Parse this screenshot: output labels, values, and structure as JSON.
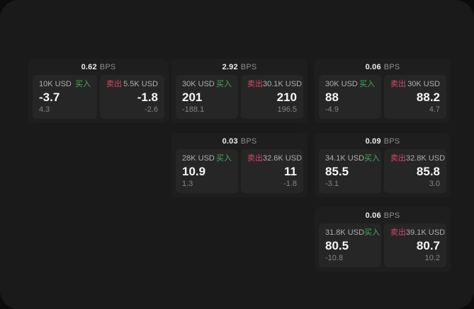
{
  "meta": {
    "unit_label": "BPS",
    "buy_label": "买入",
    "sell_label": "卖出"
  },
  "colors": {
    "buy": "#3fae60",
    "sell": "#d84766",
    "backdrop": "#0c0c0d",
    "panel": "#1a1a1b",
    "card": "#1e1e1f",
    "subpanel": "#262627"
  },
  "cards": [
    {
      "spread": "0.62",
      "unit": "BPS",
      "buy": {
        "size": "10K USD",
        "action": "买入",
        "price": "-3.7",
        "change": "4.3"
      },
      "sell": {
        "size": "5.5K USD",
        "action": "卖出",
        "price": "-1.8",
        "change": "-2.6"
      }
    },
    {
      "spread": "2.92",
      "unit": "BPS",
      "buy": {
        "size": "30K USD",
        "action": "买入",
        "price": "201",
        "change": "-188.1"
      },
      "sell": {
        "size": "30.1K USD",
        "action": "卖出",
        "price": "210",
        "change": "196.5"
      }
    },
    {
      "spread": "0.06",
      "unit": "BPS",
      "buy": {
        "size": "30K USD",
        "action": "买入",
        "price": "88",
        "change": "-4.9"
      },
      "sell": {
        "size": "30K USD",
        "action": "卖出",
        "price": "88.2",
        "change": "4.7"
      }
    },
    {
      "spread": "0.03",
      "unit": "BPS",
      "buy": {
        "size": "28K USD",
        "action": "买入",
        "price": "10.9",
        "change": "1.3"
      },
      "sell": {
        "size": "32.6K USD",
        "action": "卖出",
        "price": "11",
        "change": "-1.8"
      }
    },
    {
      "spread": "0.09",
      "unit": "BPS",
      "buy": {
        "size": "34.1K USD",
        "action": "买入",
        "price": "85.5",
        "change": "-3.1"
      },
      "sell": {
        "size": "32.8K USD",
        "action": "卖出",
        "price": "85.8",
        "change": "3.0"
      }
    },
    {
      "spread": "0.06",
      "unit": "BPS",
      "buy": {
        "size": "31.8K USD",
        "action": "买入",
        "price": "80.5",
        "change": "-10.8"
      },
      "sell": {
        "size": "39.1K USD",
        "action": "卖出",
        "price": "80.7",
        "change": "10.2"
      }
    }
  ]
}
